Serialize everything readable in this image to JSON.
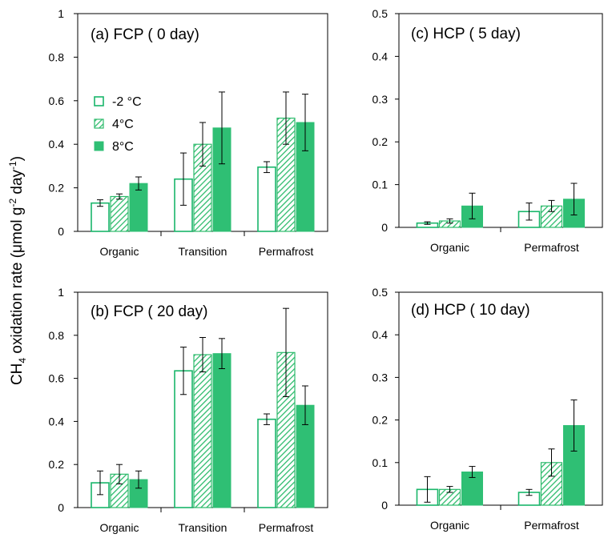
{
  "y_axis_label": {
    "main": "CH",
    "sub": "4",
    "rest": " oxidation rate (μmol g",
    "sup1": "-2",
    "mid": " day",
    "sup2": "-1",
    "end": ")"
  },
  "colors": {
    "dark_green": "#1db870",
    "hatch_green": "#2dbb6c",
    "solid_green": "#2fbf74",
    "outline_green": "#19b66a"
  },
  "chart_data": [
    {
      "type": "bar",
      "id": "a",
      "title": "(a) FCP ( 0 day)",
      "categories": [
        "Organic",
        "Transition",
        "Permafrost"
      ],
      "ylim": [
        0,
        1
      ],
      "yticks": [
        "0",
        "0.2",
        "0.4",
        "0.6",
        "0.8",
        "1"
      ],
      "tickvalues": [
        0,
        0.2,
        0.4,
        0.6,
        0.8,
        1
      ],
      "legend": {
        "position": "upper-left",
        "entries": [
          "-2 °C",
          "4°C",
          "8°C"
        ]
      },
      "series": [
        {
          "name": "-2 °C",
          "style": "open",
          "values": [
            0.13,
            0.24,
            0.295
          ],
          "errors": [
            0.015,
            0.12,
            0.025
          ]
        },
        {
          "name": "4°C",
          "style": "hatched",
          "values": [
            0.16,
            0.4,
            0.52
          ],
          "errors": [
            0.012,
            0.1,
            0.12
          ]
        },
        {
          "name": "8°C",
          "style": "solid",
          "values": [
            0.22,
            0.475,
            0.5
          ],
          "errors": [
            0.03,
            0.165,
            0.13
          ]
        }
      ]
    },
    {
      "type": "bar",
      "id": "c",
      "title": "(c) HCP ( 5 day)",
      "categories": [
        "Organic",
        "Permafrost"
      ],
      "ylim": [
        0,
        0.5
      ],
      "yticks": [
        "0",
        "0.1",
        "0.2",
        "0.3",
        "0.4",
        "0.5"
      ],
      "tickvalues": [
        0,
        0.1,
        0.2,
        0.3,
        0.4,
        0.5
      ],
      "series": [
        {
          "name": "-2 °C",
          "style": "open",
          "values": [
            0.01,
            0.037
          ],
          "errors": [
            0.003,
            0.02
          ]
        },
        {
          "name": "4°C",
          "style": "hatched",
          "values": [
            0.015,
            0.05
          ],
          "errors": [
            0.005,
            0.013
          ]
        },
        {
          "name": "8°C",
          "style": "solid",
          "values": [
            0.05,
            0.066
          ],
          "errors": [
            0.03,
            0.037
          ]
        }
      ]
    },
    {
      "type": "bar",
      "id": "b",
      "title": "(b) FCP ( 20 day)",
      "categories": [
        "Organic",
        "Transition",
        "Permafrost"
      ],
      "ylim": [
        0,
        1
      ],
      "yticks": [
        "0",
        "0.2",
        "0.4",
        "0.6",
        "0.8",
        "1"
      ],
      "tickvalues": [
        0,
        0.2,
        0.4,
        0.6,
        0.8,
        1
      ],
      "series": [
        {
          "name": "-2 °C",
          "style": "open",
          "values": [
            0.115,
            0.635,
            0.41
          ],
          "errors": [
            0.055,
            0.11,
            0.025
          ]
        },
        {
          "name": "4°C",
          "style": "hatched",
          "values": [
            0.155,
            0.71,
            0.72
          ],
          "errors": [
            0.045,
            0.08,
            0.205
          ]
        },
        {
          "name": "8°C",
          "style": "solid",
          "values": [
            0.13,
            0.715,
            0.475
          ],
          "errors": [
            0.04,
            0.07,
            0.09
          ]
        }
      ]
    },
    {
      "type": "bar",
      "id": "d",
      "title": "(d) HCP ( 10 day)",
      "categories": [
        "Organic",
        "Permafrost"
      ],
      "ylim": [
        0,
        0.5
      ],
      "yticks": [
        "0",
        "0.1",
        "0.2",
        "0.3",
        "0.4",
        "0.5"
      ],
      "tickvalues": [
        0,
        0.1,
        0.2,
        0.3,
        0.4,
        0.5
      ],
      "series": [
        {
          "name": "-2 °C",
          "style": "open",
          "values": [
            0.037,
            0.03
          ],
          "errors": [
            0.03,
            0.007
          ]
        },
        {
          "name": "4°C",
          "style": "hatched",
          "values": [
            0.037,
            0.1
          ],
          "errors": [
            0.007,
            0.032
          ]
        },
        {
          "name": "8°C",
          "style": "solid",
          "values": [
            0.078,
            0.187
          ],
          "errors": [
            0.013,
            0.06
          ]
        }
      ]
    }
  ]
}
